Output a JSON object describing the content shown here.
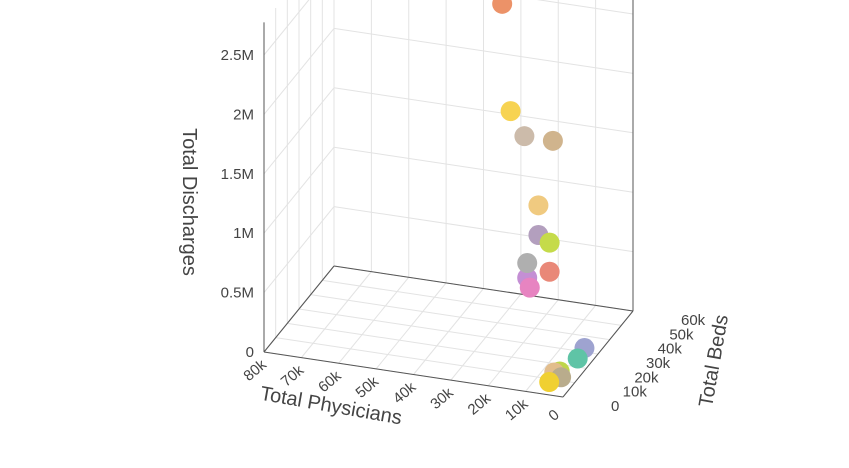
{
  "chart_data": {
    "type": "scatter3d",
    "axes": {
      "x": {
        "title": "Total Physicians",
        "range": [
          0,
          80000
        ],
        "ticks": [
          80000,
          70000,
          60000,
          50000,
          40000,
          30000,
          20000,
          10000,
          0
        ],
        "tick_labels": [
          "80k",
          "70k",
          "60k",
          "50k",
          "40k",
          "30k",
          "20k",
          "10k",
          "0"
        ]
      },
      "y": {
        "title": "Total Beds",
        "range": [
          0,
          60000
        ],
        "ticks": [
          0,
          10000,
          20000,
          30000,
          40000,
          50000,
          60000
        ],
        "tick_labels": [
          "0",
          "10k",
          "20k",
          "30k",
          "40k",
          "50k",
          "60k"
        ]
      },
      "z": {
        "title": "Total Discharges",
        "range": [
          0,
          2500000
        ],
        "ticks": [
          0,
          500000,
          1000000,
          1500000,
          2000000,
          2500000
        ],
        "tick_labels": [
          "0",
          "0.5M",
          "1M",
          "1.5M",
          "2M",
          "2.5M"
        ]
      }
    },
    "grid": true,
    "points": [
      {
        "x": 4000,
        "y": 1000,
        "z": 95000,
        "color": "#f0d031"
      },
      {
        "x": 3000,
        "y": 8000,
        "z": 55000,
        "color": "#b9ac8c"
      },
      {
        "x": 4000,
        "y": 10000,
        "z": 75000,
        "color": "#bfd64a"
      },
      {
        "x": 5000,
        "y": 8500,
        "z": 80000,
        "color": "#e2bd8c"
      },
      {
        "x": 2000,
        "y": 19000,
        "z": 85000,
        "color": "#5fc4a6"
      },
      {
        "x": 3000,
        "y": 28000,
        "z": 60000,
        "color": "#9ea3d0"
      },
      {
        "x": 22000,
        "y": 42000,
        "z": 310000,
        "color": "#e784c1"
      },
      {
        "x": 23000,
        "y": 43000,
        "z": 375000,
        "color": "#c48fd4"
      },
      {
        "x": 23000,
        "y": 43000,
        "z": 500000,
        "color": "#afafaf"
      },
      {
        "x": 17000,
        "y": 43000,
        "z": 455000,
        "color": "#e98878"
      },
      {
        "x": 17000,
        "y": 43000,
        "z": 700000,
        "color": "#c5db4a"
      },
      {
        "x": 20000,
        "y": 43000,
        "z": 750000,
        "color": "#b39fbe"
      },
      {
        "x": 20000,
        "y": 43000,
        "z": 1000000,
        "color": "#f0ca80"
      },
      {
        "x": 18000,
        "y": 49000,
        "z": 1480000,
        "color": "#d0b48d"
      },
      {
        "x": 25000,
        "y": 47000,
        "z": 1510000,
        "color": "#ccbbaa"
      },
      {
        "x": 29000,
        "y": 48000,
        "z": 1690000,
        "color": "#f7d352"
      },
      {
        "x": 35000,
        "y": 60000,
        "z": 2420000,
        "color": "#ec9268"
      }
    ]
  }
}
